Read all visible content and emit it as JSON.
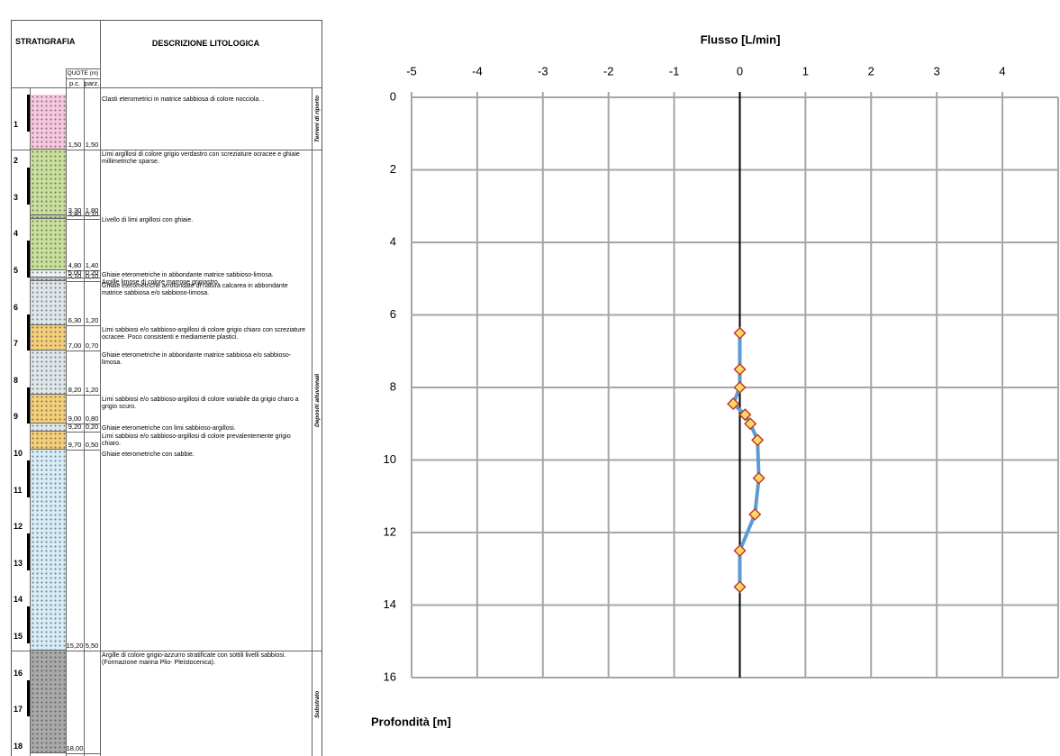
{
  "log": {
    "header": {
      "stratigrafia": "STRATIGRAFIA",
      "descrizione": "DESCRIZIONE LITOLOGICA",
      "quote": "QUOTE (m)",
      "pc": "p.c.",
      "parz": "parz."
    },
    "depth_marks": [
      1,
      2,
      3,
      4,
      5,
      6,
      7,
      8,
      9,
      10,
      11,
      12,
      13,
      14,
      15,
      16,
      17,
      18
    ],
    "groups": [
      "Terreni di riporto",
      "Depositi alluvionali",
      "Substrato"
    ],
    "layers": [
      {
        "pc": "1,50",
        "parz": "1,50",
        "color": "#f6c8e0",
        "desc": "Clasti eterometrici in matrice sabbiosa di colore nocciola. ."
      },
      {
        "pc": "3,30",
        "parz": "1,80",
        "color": "#c9df9c",
        "desc": "Limi argillosi di colore grigio verdastro con screziature ocracee e  ghiaie millimetriche sparse."
      },
      {
        "pc": "3,40",
        "parz": "0,10",
        "color": "#b8c9a0",
        "desc": "Livello di limi argillosi con ghiaie."
      },
      {
        "pc": "4,80",
        "parz": "1,40",
        "color": "#c9df9c"
      },
      {
        "pc": "5,00",
        "parz": "0,20",
        "color": "#eef2f5",
        "desc": "Ghiaie eterometriche in abbondante matrice sabbioso-limosa."
      },
      {
        "pc": "5,10",
        "parz": "0,10",
        "color": "#bfbfbf",
        "desc": "Argille limose di colore marrone grigiastro."
      },
      {
        "pc": "6,30",
        "parz": "1,20",
        "color": "#dfe6ea",
        "desc": "Ghiaie eterometriche arrotondate di natura calcarea in abbondante matrice sabbiosa e/o sabbioso-limosa."
      },
      {
        "pc": "7,00",
        "parz": "0,70",
        "color": "#f3cf7a",
        "desc": "Limi sabbiosi e/o sabbioso-argillosi di colore grigio chiaro  con screziature ocracee. Poco consistenti e mediamente plastici."
      },
      {
        "pc": "8,20",
        "parz": "1,20",
        "color": "#dfe6ea",
        "desc": "Ghiaie eterometriche  in abbondante matrice sabbiosa e/o sabbioso-limosa."
      },
      {
        "pc": "9,00",
        "parz": "0,80",
        "color": "#f3cf7a",
        "desc": "Limi sabbiosi e/o sabbioso-argillosi di colore variabile da grigio charo a grigio scuro."
      },
      {
        "pc": "9,20",
        "parz": "0,20",
        "color": "#dfe6ea",
        "desc": "Ghiaie eterometriche  con limi sabbioso-argillosi."
      },
      {
        "pc": "9,70",
        "parz": "0,50",
        "color": "#f3cf7a",
        "desc": "Limi sabbiosi e/o sabbioso-argillosi di colore prevalentemente  grigio chiaro."
      },
      {
        "pc": "15,20",
        "parz": "5,50",
        "color": "#d6ecf7",
        "desc": "Ghiaie eterometriche con sabbie."
      },
      {
        "pc": "18,00",
        "color": "#a9a9a9",
        "desc": "Argille di colore grigio-azzurro stratificate con sottili livelli sabbiosi. (Formazione marina Plio- Pleistocenica)."
      }
    ]
  },
  "chart_data": {
    "type": "line",
    "orientation": "horizontal",
    "title": "Flusso [L/min]",
    "y_label": "Profondità [m]",
    "x": [
      6.5,
      7.5,
      8,
      8.45,
      8.75,
      9,
      9.45,
      10.5,
      11.5,
      12.5,
      13.5
    ],
    "series": [
      {
        "name": "Flusso",
        "color": "#5b9bd5",
        "marker_fill": "#ffd966",
        "marker_stroke": "#c0392b",
        "values": [
          0,
          0,
          0,
          -0.1,
          0.08,
          0.16,
          0.27,
          0.29,
          0.23,
          0,
          0
        ]
      }
    ],
    "xlim": [
      -5,
      4.85
    ],
    "xticks": [
      -5,
      -4,
      -3,
      -2,
      -1,
      0,
      1,
      2,
      3,
      4
    ],
    "ylim": [
      0,
      16
    ],
    "yticks": [
      0,
      2,
      4,
      6,
      8,
      10,
      12,
      14,
      16
    ],
    "grid": true
  }
}
